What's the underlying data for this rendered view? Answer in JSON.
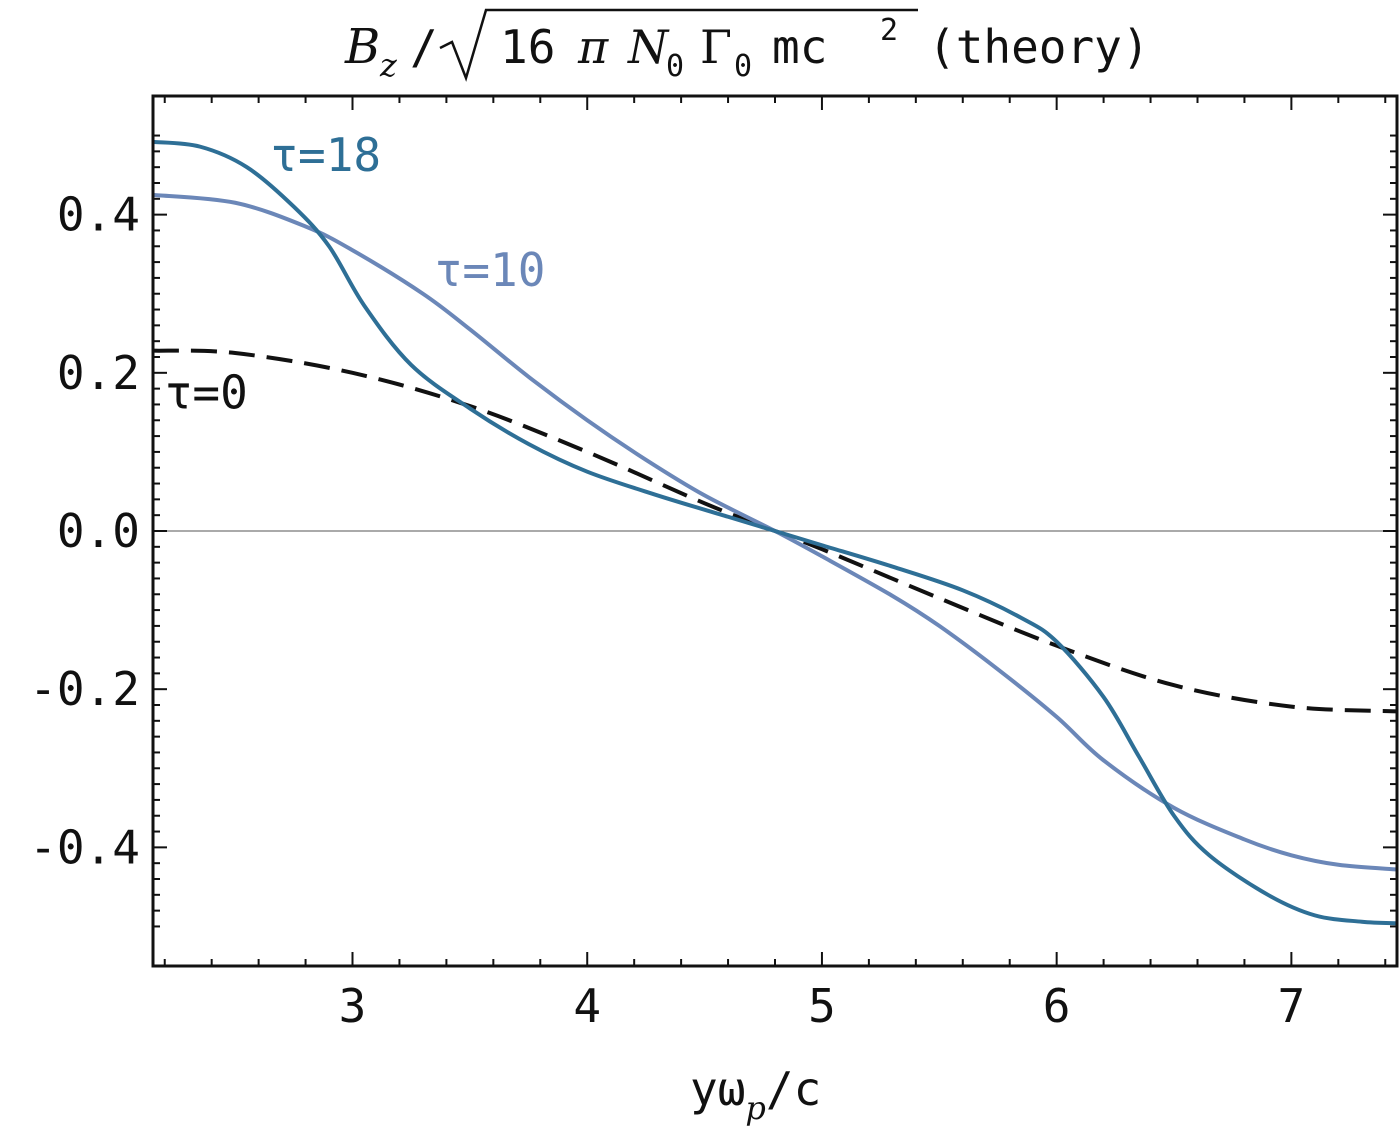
{
  "chart_data": {
    "type": "line",
    "title": {
      "prefix": "B",
      "prefix_sub": "z",
      "slash": "/",
      "radicand_parts": [
        "16",
        "π",
        "N",
        "0",
        "Γ",
        "0",
        "mc",
        "2"
      ],
      "suffix": "(theory)"
    },
    "xlabel": {
      "main": "yω",
      "sub": "p",
      "suffix": "/c"
    },
    "ylabel": "",
    "xlim": [
      2.15,
      7.45
    ],
    "ylim": [
      -0.55,
      0.55
    ],
    "x_ticks": [
      3,
      4,
      5,
      6,
      7
    ],
    "x_tick_labels": [
      "3",
      "4",
      "5",
      "6",
      "7"
    ],
    "y_ticks": [
      0.4,
      0.2,
      0.0,
      -0.2,
      -0.4
    ],
    "y_tick_labels": [
      "0.4",
      "0.2",
      "0.0",
      "-0.2",
      "-0.4"
    ],
    "zero_line": true,
    "series": [
      {
        "name": "τ=0",
        "label": "τ=0",
        "label_pos": [
          2.2,
          0.155
        ],
        "color": "#111111",
        "dash": true,
        "x": [
          2.15,
          2.5,
          3.0,
          3.5,
          4.0,
          4.5,
          4.8,
          5.0,
          5.5,
          6.0,
          6.5,
          7.0,
          7.45
        ],
        "y": [
          0.228,
          0.225,
          0.2,
          0.158,
          0.1,
          0.035,
          0.0,
          -0.023,
          -0.085,
          -0.145,
          -0.195,
          -0.222,
          -0.228
        ]
      },
      {
        "name": "τ=10",
        "label": "τ=10",
        "label_pos": [
          3.35,
          0.31
        ],
        "color": "#6b87b8",
        "dash": false,
        "x": [
          2.15,
          2.5,
          2.8,
          3.0,
          3.3,
          3.5,
          3.75,
          4.0,
          4.25,
          4.5,
          4.8,
          5.0,
          5.3,
          5.5,
          5.75,
          6.0,
          6.2,
          6.5,
          6.8,
          7.0,
          7.2,
          7.45
        ],
        "y": [
          0.425,
          0.415,
          0.385,
          0.355,
          0.3,
          0.255,
          0.195,
          0.14,
          0.09,
          0.045,
          0.0,
          -0.032,
          -0.082,
          -0.12,
          -0.175,
          -0.235,
          -0.29,
          -0.35,
          -0.39,
          -0.41,
          -0.422,
          -0.428
        ]
      },
      {
        "name": "τ=18",
        "label": "τ=18",
        "label_pos": [
          2.65,
          0.455
        ],
        "color": "#2e6f96",
        "dash": false,
        "x": [
          2.15,
          2.35,
          2.55,
          2.75,
          2.9,
          3.05,
          3.25,
          3.5,
          3.75,
          4.0,
          4.3,
          4.6,
          4.8,
          5.0,
          5.3,
          5.6,
          5.85,
          6.0,
          6.2,
          6.35,
          6.5,
          6.65,
          6.9,
          7.1,
          7.3,
          7.45
        ],
        "y": [
          0.492,
          0.486,
          0.46,
          0.41,
          0.36,
          0.285,
          0.21,
          0.155,
          0.11,
          0.075,
          0.045,
          0.018,
          0.0,
          -0.018,
          -0.045,
          -0.075,
          -0.11,
          -0.14,
          -0.21,
          -0.285,
          -0.36,
          -0.41,
          -0.46,
          -0.486,
          -0.494,
          -0.496
        ]
      }
    ]
  }
}
